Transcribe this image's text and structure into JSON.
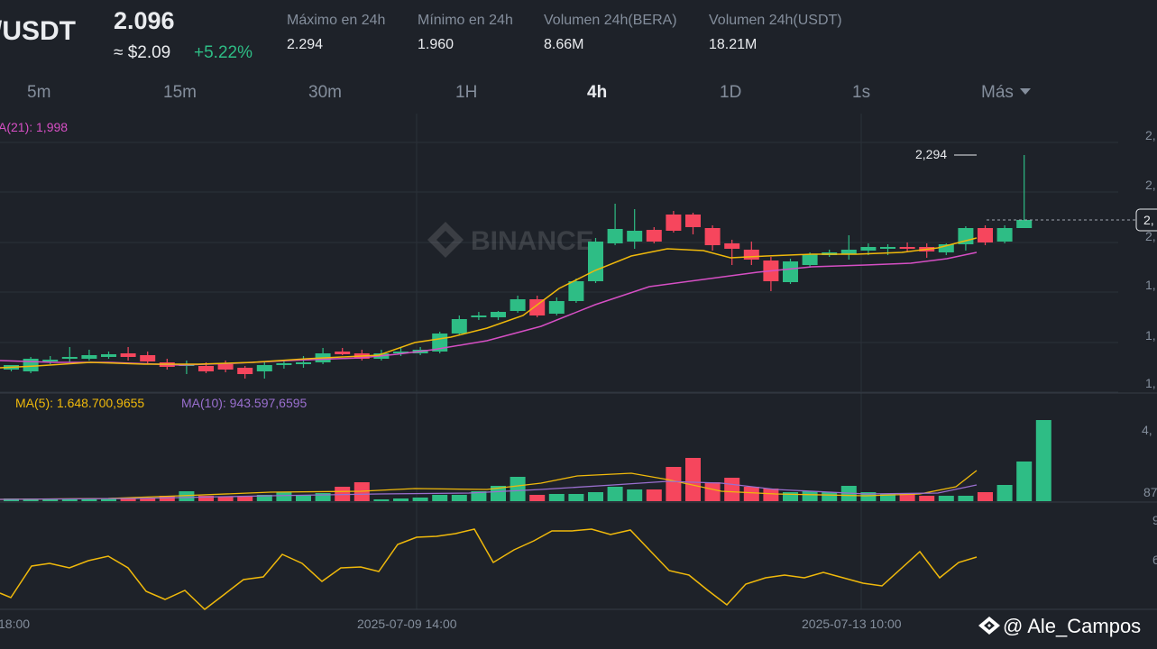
{
  "header": {
    "pair": "/USDT",
    "price": "2.096",
    "approx_usd": "≈ $2.09",
    "change_pct": "+5.22%",
    "stats": [
      {
        "label": "Máximo en 24h",
        "value": "2.294"
      },
      {
        "label": "Mínimo en 24h",
        "value": "1.960"
      },
      {
        "label": "Volumen 24h(BERA)",
        "value": "8.66M"
      },
      {
        "label": "Volumen 24h(USDT)",
        "value": "18.21M"
      }
    ]
  },
  "timeframes": {
    "items": [
      "5m",
      "15m",
      "30m",
      "1H",
      "4h",
      "1D",
      "1s"
    ],
    "active": "4h",
    "more_label": "Más"
  },
  "chart": {
    "ma_main_label": "A(21): 1,998",
    "high_marker": "2,294",
    "current_price_tag": "2,",
    "price_axis_labels": [
      "2,",
      "2,",
      "2,",
      "1,",
      "1,",
      "1,"
    ],
    "volume_ma5_label": "MA(5): 1.648.700,9655",
    "volume_ma10_label": "MA(10): 943.597,6595",
    "volume_axis_labels": [
      "4,",
      "87"
    ],
    "osc_axis_labels": [
      "9",
      "6"
    ],
    "time_labels": [
      "18:00",
      "2025-07-09 14:00",
      "2025-07-13 10:00"
    ],
    "exchange_watermark": "BINANCE",
    "colors": {
      "up": "#2ebd85",
      "down": "#f6465d",
      "ma_fast": "#f0b90b",
      "ma_slow": "#d64fc4",
      "vol_ma10": "#9a6fcf",
      "oscillator": "#f0b90b"
    }
  },
  "watermark_user": "@ Ale_Campos"
}
